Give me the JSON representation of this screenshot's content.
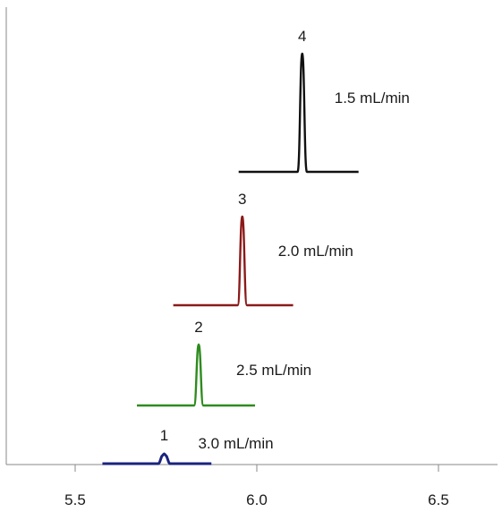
{
  "chart_data": {
    "type": "line",
    "title": "",
    "xlabel": "",
    "ylabel": "",
    "xlim": [
      5.305,
      6.67
    ],
    "x_ticks": [
      "5.5",
      "6.0",
      "6.5"
    ],
    "x_tick_values": [
      5.5,
      6.0,
      6.5
    ],
    "grid": false,
    "series": [
      {
        "name": "1",
        "flow_label": "3.0 mL/min",
        "color": "#1a237e",
        "x_range": [
          5.575,
          5.875
        ],
        "apex_x": 5.745,
        "peak_width": 0.012,
        "height": 0.5
      },
      {
        "name": "2",
        "flow_label": "2.5 mL/min",
        "color": "#2e8b1e",
        "x_range": [
          5.67,
          5.995
        ],
        "apex_x": 5.84,
        "peak_width": 0.008,
        "height": 3.1
      },
      {
        "name": "3",
        "flow_label": "2.0 mL/min",
        "color": "#8b1a1a",
        "x_range": [
          5.77,
          6.1
        ],
        "apex_x": 5.96,
        "peak_width": 0.008,
        "height": 4.5
      },
      {
        "name": "4",
        "flow_label": "1.5 mL/min",
        "color": "#111111",
        "x_range": [
          5.95,
          6.28
        ],
        "apex_x": 6.125,
        "peak_width": 0.008,
        "height": 6.0
      }
    ]
  }
}
